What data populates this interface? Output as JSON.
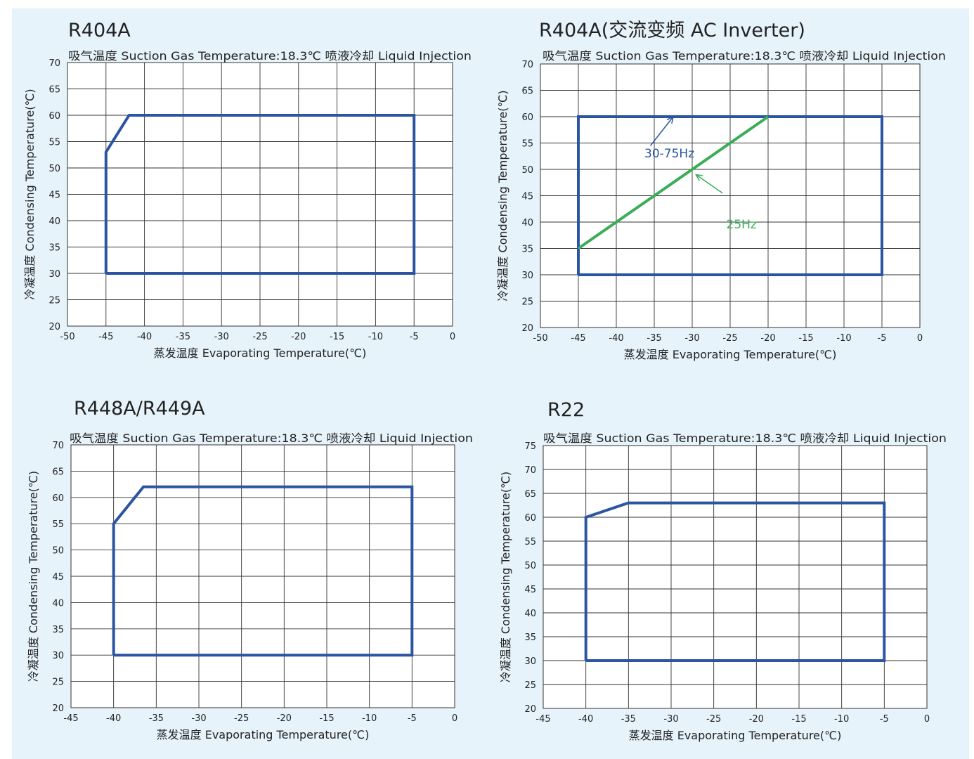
{
  "colors": {
    "panel_bg": "#e6f3fa",
    "envelope": "#2b55a3",
    "line_25hz": "#3aad58",
    "grid": "#333333",
    "text": "#222222"
  },
  "chart_data": [
    {
      "type": "line",
      "title": "R404A",
      "subtitle": "吸气温度 Suction Gas Temperature:18.3℃  喷液冷却 Liquid Injection",
      "xlabel": "蒸发温度 Evaporating Temperature(℃)",
      "ylabel": "冷凝温度 Condensing Temperature(℃)",
      "xlim": [
        -50,
        0
      ],
      "ylim": [
        20,
        70
      ],
      "x_ticks": [
        -50,
        -45,
        -40,
        -35,
        -30,
        -25,
        -20,
        -15,
        -10,
        -5,
        0
      ],
      "y_ticks": [
        20,
        25,
        30,
        35,
        40,
        45,
        50,
        55,
        60,
        65,
        70
      ],
      "grid": true,
      "series": [
        {
          "name": "",
          "color": "#2b55a3",
          "points": [
            [
              -45,
              30
            ],
            [
              -45,
              53
            ],
            [
              -42,
              60
            ],
            [
              -5,
              60
            ],
            [
              -5,
              30
            ],
            [
              -45,
              30
            ]
          ]
        }
      ],
      "annotations": []
    },
    {
      "type": "line",
      "title": "R404A(交流变频 AC Inverter)",
      "subtitle": "吸气温度 Suction Gas Temperature:18.3℃  喷液冷却 Liquid Injection",
      "xlabel": "蒸发温度 Evaporating Temperature(℃)",
      "ylabel": "冷凝温度 Condensing Temperature(℃)",
      "xlim": [
        -50,
        0
      ],
      "ylim": [
        20,
        70
      ],
      "x_ticks": [
        -50,
        -45,
        -40,
        -35,
        -30,
        -25,
        -20,
        -15,
        -10,
        -5,
        0
      ],
      "y_ticks": [
        20,
        25,
        30,
        35,
        40,
        45,
        50,
        55,
        60,
        65,
        70
      ],
      "grid": true,
      "series": [
        {
          "name": "30-75Hz",
          "color": "#2b55a3",
          "points": [
            [
              -45,
              30
            ],
            [
              -45,
              60
            ],
            [
              -5,
              60
            ],
            [
              -5,
              30
            ],
            [
              -45,
              30
            ]
          ]
        },
        {
          "name": "25Hz",
          "color": "#3aad58",
          "points": [
            [
              -45,
              35
            ],
            [
              -20,
              60
            ]
          ]
        }
      ],
      "annotations": [
        {
          "text": "30-75Hz",
          "color": "#2b55a3",
          "at": [
            -33,
            52.3
          ],
          "arrow_from": [
            -35.5,
            54.5
          ],
          "arrow_to": [
            -32.5,
            60
          ]
        },
        {
          "text": "25Hz",
          "color": "#3aad58",
          "at": [
            -23.5,
            38.8
          ],
          "arrow_from": [
            -26,
            45.5
          ],
          "arrow_to": [
            -29.5,
            49
          ]
        }
      ]
    },
    {
      "type": "line",
      "title": "R448A/R449A",
      "subtitle": "吸气温度 Suction Gas Temperature:18.3℃  喷液冷却 Liquid Injection",
      "xlabel": "蒸发温度 Evaporating Temperature(℃)",
      "ylabel": "冷凝温度 Condensing Temperature(℃)",
      "xlim": [
        -45,
        0
      ],
      "ylim": [
        20,
        70
      ],
      "x_ticks": [
        -45,
        -40,
        -35,
        -30,
        -25,
        -20,
        -15,
        -10,
        -5,
        0
      ],
      "y_ticks": [
        20,
        25,
        30,
        35,
        40,
        45,
        50,
        55,
        60,
        65,
        70
      ],
      "grid": true,
      "series": [
        {
          "name": "",
          "color": "#2b55a3",
          "points": [
            [
              -40,
              30
            ],
            [
              -40,
              55
            ],
            [
              -36.5,
              62
            ],
            [
              -5,
              62
            ],
            [
              -5,
              30
            ],
            [
              -40,
              30
            ]
          ]
        }
      ],
      "annotations": []
    },
    {
      "type": "line",
      "title": "R22",
      "subtitle": "吸气温度 Suction Gas Temperature:18.3℃  喷液冷却 Liquid Injection",
      "xlabel": "蒸发温度 Evaporating Temperature(℃)",
      "ylabel": "冷凝温度 Condensing Temperature(℃)",
      "xlim": [
        -45,
        0
      ],
      "ylim": [
        20,
        75
      ],
      "x_ticks": [
        -45,
        -40,
        -35,
        -30,
        -25,
        -20,
        -15,
        -10,
        -5,
        0
      ],
      "y_ticks": [
        20,
        25,
        30,
        35,
        40,
        45,
        50,
        55,
        60,
        65,
        70,
        75
      ],
      "grid": true,
      "series": [
        {
          "name": "",
          "color": "#2b55a3",
          "points": [
            [
              -40,
              30
            ],
            [
              -40,
              60
            ],
            [
              -35,
              63
            ],
            [
              -5,
              63
            ],
            [
              -5,
              30
            ],
            [
              -40,
              30
            ]
          ]
        }
      ],
      "annotations": []
    }
  ]
}
